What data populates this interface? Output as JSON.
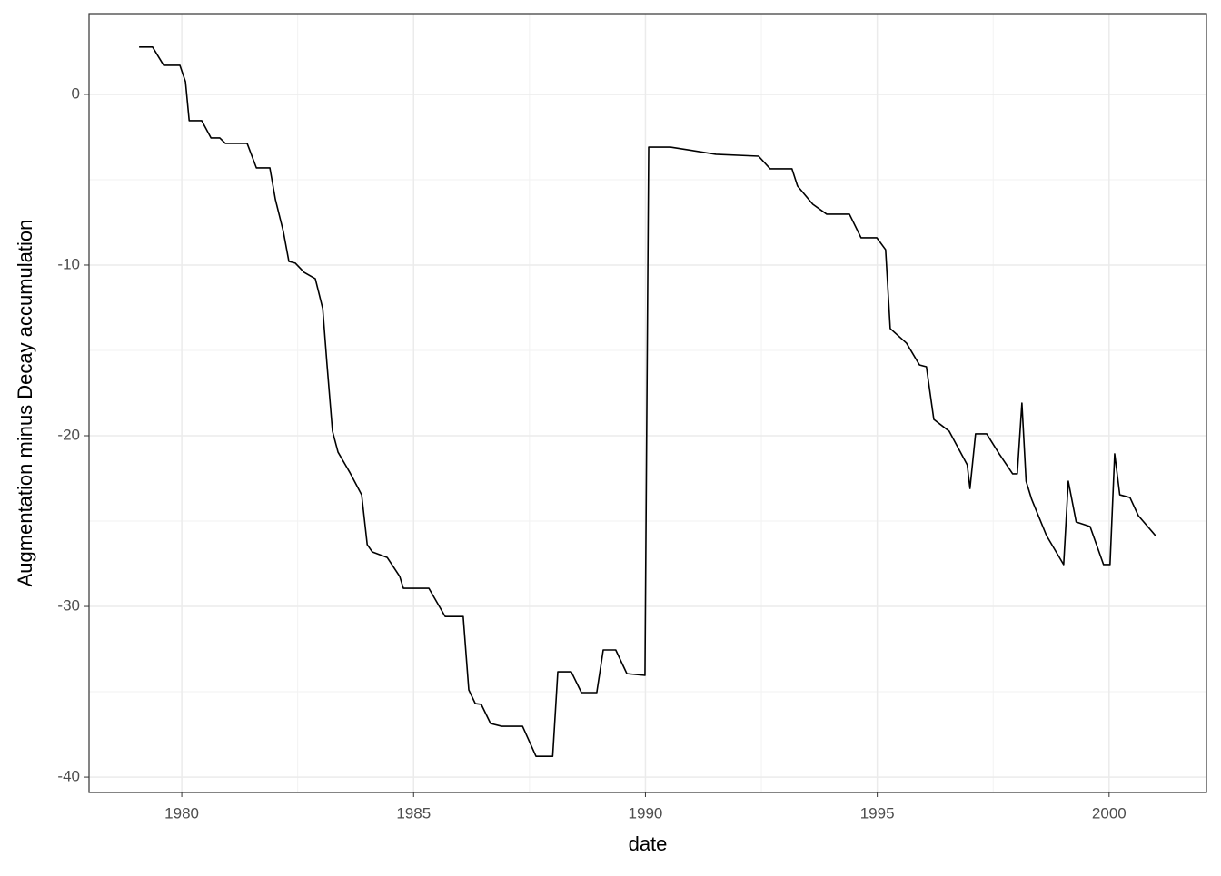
{
  "chart_data": {
    "type": "line",
    "x_label": "date",
    "y_label": "Augmentation minus Decay accumulation",
    "x": [
      1979.08,
      1979.37,
      1979.61,
      1979.96,
      1980.08,
      1980.16,
      1980.43,
      1980.63,
      1980.82,
      1980.94,
      1981.41,
      1981.61,
      1981.9,
      1982.02,
      1982.19,
      1982.31,
      1982.45,
      1982.64,
      1982.88,
      1983.04,
      1983.13,
      1983.25,
      1983.37,
      1983.62,
      1983.88,
      1984.0,
      1984.11,
      1984.43,
      1984.7,
      1984.78,
      1985.33,
      1985.68,
      1986.07,
      1986.19,
      1986.33,
      1986.46,
      1986.66,
      1986.9,
      1987.35,
      1987.64,
      1988.0,
      1988.11,
      1988.4,
      1988.62,
      1988.95,
      1989.09,
      1989.36,
      1989.6,
      1989.99,
      1990.07,
      1990.54,
      1991.52,
      1992.44,
      1992.69,
      1993.16,
      1993.28,
      1993.61,
      1993.91,
      1994.4,
      1994.65,
      1994.99,
      1995.18,
      1995.28,
      1995.63,
      1995.91,
      1996.06,
      1996.22,
      1996.55,
      1996.94,
      1997.0,
      1997.12,
      1997.36,
      1997.63,
      1997.92,
      1998.02,
      1998.12,
      1998.21,
      1998.33,
      1998.65,
      1999.02,
      1999.12,
      1999.29,
      1999.59,
      1999.88,
      2000.02,
      2000.12,
      2000.23,
      2000.45,
      2000.63,
      2001.0
    ],
    "series": [
      {
        "color": "#000000",
        "values": [
          2.77,
          2.77,
          1.7,
          1.7,
          0.74,
          -1.54,
          -1.54,
          -2.55,
          -2.55,
          -2.87,
          -2.87,
          -4.31,
          -4.31,
          -6.17,
          -8.03,
          -9.79,
          -9.89,
          -10.43,
          -10.8,
          -12.55,
          -15.74,
          -19.73,
          -20.96,
          -22.13,
          -23.46,
          -26.38,
          -26.81,
          -27.13,
          -28.24,
          -28.94,
          -28.94,
          -30.59,
          -30.59,
          -34.89,
          -35.69,
          -35.74,
          -36.86,
          -37.02,
          -37.02,
          -38.78,
          -38.78,
          -33.83,
          -33.83,
          -35.05,
          -35.05,
          -32.55,
          -32.55,
          -33.94,
          -34.04,
          -3.09,
          -3.09,
          -3.51,
          -3.62,
          -4.36,
          -4.36,
          -5.37,
          -6.44,
          -7.02,
          -7.02,
          -8.4,
          -8.4,
          -9.1,
          -13.72,
          -14.57,
          -15.85,
          -15.96,
          -19.04,
          -19.73,
          -21.7,
          -23.09,
          -19.89,
          -19.89,
          -21.06,
          -22.23,
          -22.23,
          -18.09,
          -22.66,
          -23.72,
          -25.85,
          -27.55,
          -22.66,
          -25.05,
          -25.32,
          -27.55,
          -27.55,
          -21.06,
          -23.46,
          -23.62,
          -24.68,
          -25.85
        ]
      }
    ],
    "xlim": [
      1978.0,
      2002.1
    ],
    "xticks": [
      1980,
      1985,
      1990,
      1995,
      2000
    ],
    "ylim": [
      -40.9,
      4.73
    ],
    "yticks": [
      -40,
      -30,
      -20,
      -10,
      0
    ],
    "grid": true
  }
}
